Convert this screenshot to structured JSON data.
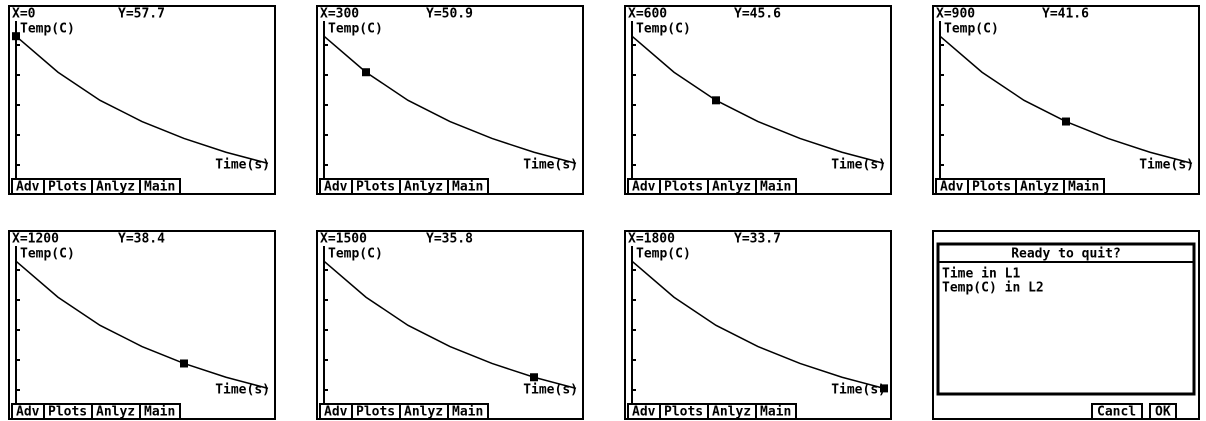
{
  "screens": [
    {
      "readout_x": "X=0",
      "readout_y": "Y=57.7",
      "x": 0,
      "y": 57.7
    },
    {
      "readout_x": "X=300",
      "readout_y": "Y=50.9",
      "x": 300,
      "y": 50.9
    },
    {
      "readout_x": "X=600",
      "readout_y": "Y=45.6",
      "x": 600,
      "y": 45.6
    },
    {
      "readout_x": "X=900",
      "readout_y": "Y=41.6",
      "x": 900,
      "y": 41.6
    },
    {
      "readout_x": "X=1200",
      "readout_y": "Y=38.4",
      "x": 1200,
      "y": 38.4
    },
    {
      "readout_x": "X=1500",
      "readout_y": "Y=35.8",
      "x": 1500,
      "y": 35.8
    },
    {
      "readout_x": "X=1800",
      "readout_y": "Y=33.7",
      "x": 1800,
      "y": 33.7
    }
  ],
  "y_axis_label": "Temp(C)",
  "x_axis_label": "Time(s)",
  "xlim": [
    0,
    1800
  ],
  "ylim": [
    30,
    60
  ],
  "menu": [
    "Adv",
    "Plots",
    "Anlyz",
    "Main"
  ],
  "dialog": {
    "title": "Ready to quit?",
    "lines": [
      "Time in L1",
      "Temp(C) in L2"
    ],
    "buttons": [
      "Cancl",
      "OK"
    ]
  }
}
